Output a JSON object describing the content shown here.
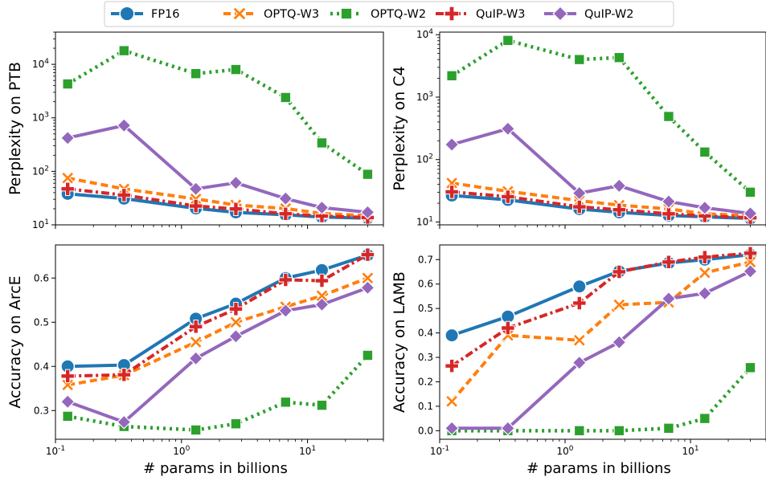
{
  "legend": {
    "placement": "top-center",
    "entries": [
      {
        "name": "FP16",
        "color": "#1f77b4",
        "marker": "circle",
        "dash": "solid"
      },
      {
        "name": "OPTQ-W3",
        "color": "#ff7f0e",
        "marker": "x",
        "dash": "dashed"
      },
      {
        "name": "OPTQ-W2",
        "color": "#2ca02c",
        "marker": "square",
        "dash": "dotted"
      },
      {
        "name": "QuIP-W3",
        "color": "#d62728",
        "marker": "plus",
        "dash": "dashdot"
      },
      {
        "name": "QuIP-W2",
        "color": "#9467bd",
        "marker": "diamond",
        "dash": "solid"
      }
    ]
  },
  "chart_data": [
    {
      "type": "line",
      "ylabel": "Perplexity on PTB",
      "xlabel": "",
      "xscale": "log",
      "yscale": "log",
      "xlim": [
        0.1,
        40
      ],
      "ylim": [
        10,
        40000
      ],
      "x": [
        0.125,
        0.35,
        1.3,
        2.7,
        6.7,
        13,
        30
      ],
      "xticks": [
        "10^-1",
        "10^0",
        "10^1"
      ],
      "yticks": [
        "10^1",
        "10^2",
        "10^3",
        "10^4"
      ],
      "series": [
        {
          "name": "FP16",
          "values": [
            38,
            31,
            20.3,
            17.1,
            15.4,
            14.0,
            13.3
          ]
        },
        {
          "name": "OPTQ-W3",
          "values": [
            75,
            47,
            30.5,
            23.5,
            20.2,
            16.3,
            14.8
          ]
        },
        {
          "name": "OPTQ-W2",
          "values": [
            4300,
            18000,
            6700,
            8000,
            2400,
            340,
            88
          ]
        },
        {
          "name": "QuIP-W3",
          "values": [
            47,
            36,
            22.5,
            19.8,
            16.1,
            14.6,
            13.7
          ]
        },
        {
          "name": "QuIP-W2",
          "values": [
            420,
            720,
            47,
            61,
            31,
            21,
            17.2
          ]
        }
      ]
    },
    {
      "type": "line",
      "ylabel": "Perplexity on C4",
      "xlabel": "",
      "xscale": "log",
      "yscale": "log",
      "xlim": [
        0.1,
        40
      ],
      "ylim": [
        9,
        11000
      ],
      "x": [
        0.125,
        0.35,
        1.3,
        2.7,
        6.7,
        13,
        30
      ],
      "xticks": [
        "10^-1",
        "10^0",
        "10^1"
      ],
      "yticks": [
        "10^1",
        "10^2",
        "10^3",
        "10^4"
      ],
      "series": [
        {
          "name": "FP16",
          "values": [
            26.6,
            22.6,
            16.1,
            14.3,
            12.7,
            12.1,
            11.4
          ]
        },
        {
          "name": "OPTQ-W3",
          "values": [
            42,
            31,
            22,
            18.6,
            16.2,
            13.5,
            12.7
          ]
        },
        {
          "name": "OPTQ-W2",
          "values": [
            2200,
            8100,
            4000,
            4300,
            490,
            132,
            30
          ]
        },
        {
          "name": "QuIP-W3",
          "values": [
            30.4,
            25.4,
            17.5,
            15.7,
            13.5,
            12.5,
            11.7
          ]
        },
        {
          "name": "QuIP-W2",
          "values": [
            174,
            312,
            29,
            38,
            21.3,
            16.9,
            13.7
          ]
        }
      ]
    },
    {
      "type": "line",
      "ylabel": "Accuracy on ArcE",
      "xlabel": "# params in billions",
      "xscale": "log",
      "yscale": "linear",
      "xlim": [
        0.1,
        40
      ],
      "ylim": [
        0.235,
        0.675
      ],
      "x": [
        0.125,
        0.35,
        1.3,
        2.7,
        6.7,
        13,
        30
      ],
      "xticks": [
        "10^-1",
        "10^0",
        "10^1"
      ],
      "yticks": [
        "0.3",
        "0.4",
        "0.5",
        "0.6"
      ],
      "series": [
        {
          "name": "FP16",
          "values": [
            0.4,
            0.403,
            0.508,
            0.542,
            0.6,
            0.618,
            0.652
          ]
        },
        {
          "name": "OPTQ-W3",
          "values": [
            0.358,
            0.38,
            0.455,
            0.5,
            0.535,
            0.56,
            0.6
          ]
        },
        {
          "name": "OPTQ-W2",
          "values": [
            0.287,
            0.264,
            0.256,
            0.27,
            0.319,
            0.312,
            0.425
          ]
        },
        {
          "name": "QuIP-W3",
          "values": [
            0.378,
            0.381,
            0.49,
            0.53,
            0.596,
            0.594,
            0.653
          ]
        },
        {
          "name": "QuIP-W2",
          "values": [
            0.32,
            0.274,
            0.418,
            0.468,
            0.526,
            0.54,
            0.578
          ]
        }
      ]
    },
    {
      "type": "line",
      "ylabel": "Accuracy on LAMB",
      "xlabel": "# params in billions",
      "xscale": "log",
      "yscale": "linear",
      "xlim": [
        0.1,
        40
      ],
      "ylim": [
        -0.035,
        0.76
      ],
      "x": [
        0.125,
        0.35,
        1.3,
        2.7,
        6.7,
        13,
        30
      ],
      "xticks": [
        "10^-1",
        "10^0",
        "10^1"
      ],
      "yticks": [
        "0.0",
        "0.1",
        "0.2",
        "0.3",
        "0.4",
        "0.5",
        "0.6",
        "0.7"
      ],
      "series": [
        {
          "name": "FP16",
          "values": [
            0.39,
            0.467,
            0.59,
            0.652,
            0.686,
            0.7,
            0.72
          ]
        },
        {
          "name": "OPTQ-W3",
          "values": [
            0.12,
            0.39,
            0.37,
            0.515,
            0.525,
            0.646,
            0.69
          ]
        },
        {
          "name": "OPTQ-W2",
          "values": [
            0.0,
            0.0,
            0.0,
            0.0,
            0.01,
            0.05,
            0.258
          ]
        },
        {
          "name": "QuIP-W3",
          "values": [
            0.265,
            0.42,
            0.522,
            0.65,
            0.69,
            0.71,
            0.726
          ]
        },
        {
          "name": "QuIP-W2",
          "values": [
            0.01,
            0.01,
            0.278,
            0.362,
            0.54,
            0.562,
            0.652
          ]
        }
      ]
    }
  ]
}
